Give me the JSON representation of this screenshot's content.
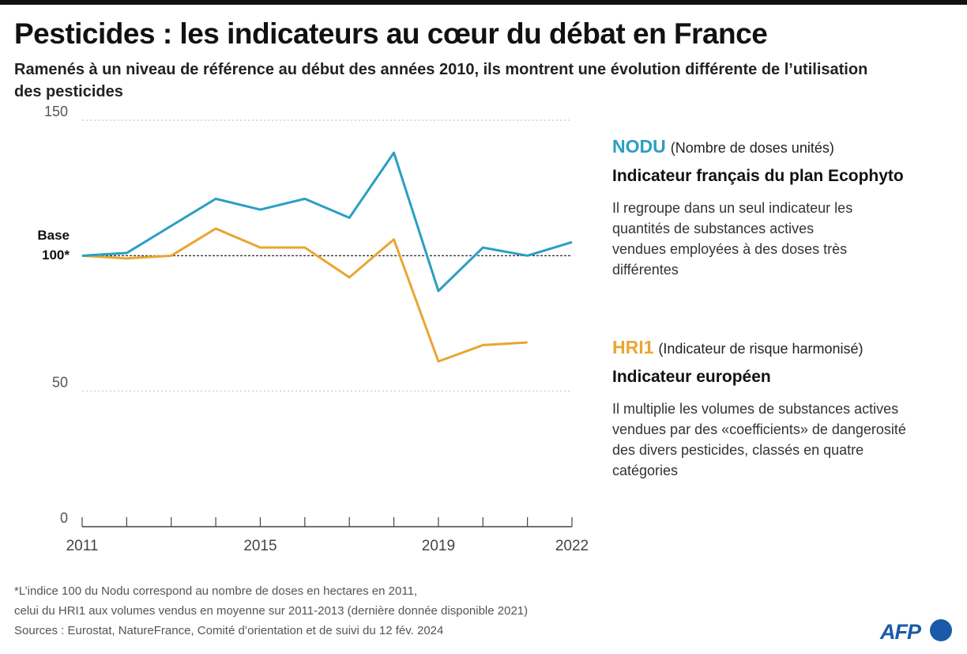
{
  "chart_data": {
    "type": "line",
    "title": "Pesticides : les indicateurs au cœur du débat en France",
    "subtitle": "Ramenés à un niveau de référence au début des années 2010,  ils montrent une évolution différente de l’utilisation des pesticides",
    "x": [
      2011,
      2012,
      2013,
      2014,
      2015,
      2016,
      2017,
      2018,
      2019,
      2020,
      2021,
      2022
    ],
    "series": [
      {
        "name": "NODU",
        "color": "#2a9fc2",
        "values": [
          100,
          101,
          111,
          121,
          117,
          121,
          114,
          138,
          87,
          103,
          100,
          105
        ]
      },
      {
        "name": "HRI1",
        "color": "#e8a631",
        "values": [
          100,
          99,
          100,
          110,
          103,
          103,
          92,
          106,
          61,
          67,
          68,
          null
        ]
      }
    ],
    "xlim": [
      2011,
      2022
    ],
    "xticks": [
      2011,
      2015,
      2019,
      2022
    ],
    "ylim": [
      0,
      150
    ],
    "yticks": [
      0,
      50,
      {
        "value": 100,
        "label": "Base 100*"
      },
      150
    ],
    "grid": true
  },
  "panels": [
    {
      "desc": "(Nombre de doses unités)",
      "heading": "Indicateur français du plan Ecophyto",
      "text": "Il regroupe dans un seul indicateur les quantités de substances actives vendues employées à des doses très différentes"
    },
    {
      "desc": "(Indicateur de risque harmonisé)",
      "heading": "Indicateur européen",
      "text": "Il multiplie les volumes de substances actives vendues par des «coefficients» de dangerosité des divers pesticides, classés en quatre catégories"
    }
  ],
  "notes": [
    "*L’indice 100 du Nodu correspond au nombre de doses en hectares en 2011,",
    "celui du HRI1 aux volumes vendus en moyenne sur 2011-2013 (dernière donnée disponible 2021)",
    "Sources : Eurostat, NatureFrance, Comité d’orientation et de suivi du 12 fév. 2024"
  ],
  "logo": "AFP"
}
